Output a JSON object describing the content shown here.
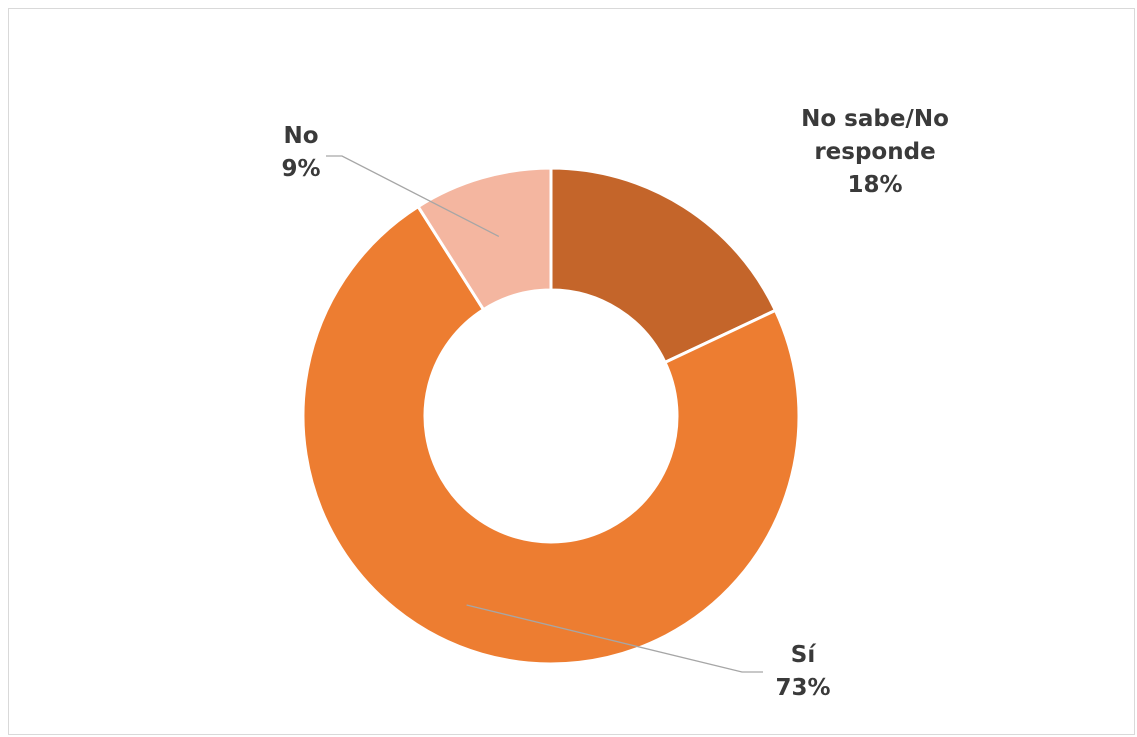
{
  "chart_data": {
    "type": "pie",
    "style": "doughnut",
    "slices": [
      {
        "name": "No sabe/No responde",
        "label": "No sabe/No",
        "label2": "responde",
        "value": 18,
        "value_label": "18%",
        "color": "#c4652a"
      },
      {
        "name": "Sí",
        "label": "Sí",
        "label2": "",
        "value": 73,
        "value_label": "73%",
        "color": "#ed7d31"
      },
      {
        "name": "No",
        "label": "No",
        "label2": "",
        "value": 9,
        "value_label": "9%",
        "color": "#f4b6a0"
      }
    ]
  }
}
